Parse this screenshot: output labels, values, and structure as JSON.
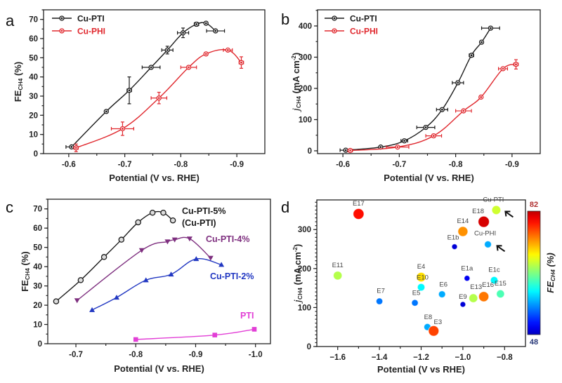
{
  "chart_data": [
    {
      "panel": "a",
      "type": "line",
      "panel_label": "a",
      "xlabel": "Potential (V vs. RHE)",
      "ylabel": "FE",
      "ylabel_sub": "CH4",
      "ylabel_suffix": " (%)",
      "xlim": [
        -0.555,
        -0.95
      ],
      "ylim": [
        0,
        75
      ],
      "xticks": [
        -0.6,
        -0.7,
        -0.8,
        -0.9
      ],
      "xtick_labels": [
        "-0.6",
        "-0.7",
        "-0.8",
        "-0.9"
      ],
      "yticks": [
        0,
        10,
        20,
        30,
        40,
        50,
        60,
        70
      ],
      "ytick_labels": [
        "0",
        "10",
        "20",
        "30",
        "40",
        "50",
        "60",
        "70"
      ],
      "legend": "top-left",
      "series": [
        {
          "name": "Cu-PTI",
          "color": "#1a1a1a",
          "marker": "circle",
          "x": [
            -0.605,
            -0.667,
            -0.708,
            -0.747,
            -0.776,
            -0.804,
            -0.828,
            -0.845,
            -0.862
          ],
          "y": [
            3.5,
            22,
            33,
            45,
            54,
            63,
            67.5,
            68,
            64
          ],
          "xerr": [
            0.01,
            0,
            0.004,
            0.016,
            0.01,
            0.01,
            0.004,
            0,
            0.016
          ],
          "yerr": [
            0,
            0,
            7,
            0,
            2,
            2.5,
            1,
            0,
            0
          ]
        },
        {
          "name": "Cu-PHI",
          "color": "#e0282e",
          "marker": "circle",
          "x": [
            -0.613,
            -0.696,
            -0.761,
            -0.814,
            -0.845,
            -0.884,
            -0.908
          ],
          "y": [
            3,
            13,
            29,
            45,
            52,
            54,
            47.5
          ],
          "xerr": [
            0.004,
            0.02,
            0.014,
            0.014,
            0,
            0.008,
            0.004
          ],
          "yerr": [
            2,
            3.5,
            3,
            0.5,
            0,
            0.5,
            3
          ]
        }
      ]
    },
    {
      "panel": "b",
      "type": "line",
      "panel_label": "b",
      "xlabel": "Potential (V vs. RHE)",
      "ylabel": "j",
      "ylabel_sub": "CH4",
      "ylabel_suffix": " (mA cm",
      "ylabel_sup": "-2",
      "ylabel_close": ")",
      "xlim": [
        -0.555,
        -0.95
      ],
      "ylim": [
        -10,
        450
      ],
      "xticks": [
        -0.6,
        -0.7,
        -0.8,
        -0.9
      ],
      "xtick_labels": [
        "-0.6",
        "-0.7",
        "-0.8",
        "-0.9"
      ],
      "yticks": [
        0,
        100,
        200,
        300,
        400
      ],
      "ytick_labels": [
        "0",
        "100",
        "200",
        "300",
        "400"
      ],
      "legend": "top-left",
      "series": [
        {
          "name": "Cu-PTI",
          "color": "#1a1a1a",
          "marker": "circle",
          "x": [
            -0.605,
            -0.667,
            -0.709,
            -0.747,
            -0.776,
            -0.804,
            -0.828,
            -0.846,
            -0.862
          ],
          "y": [
            2,
            12,
            32,
            75,
            132,
            218,
            306,
            348,
            393
          ],
          "xerr": [
            0.01,
            0,
            0.006,
            0.016,
            0.01,
            0.01,
            0.004,
            0,
            0.016
          ],
          "yerr": [
            0,
            0,
            5,
            0,
            4,
            6,
            5,
            0,
            0
          ]
        },
        {
          "name": "Cu-PHI",
          "color": "#e0282e",
          "marker": "circle",
          "x": [
            -0.613,
            -0.697,
            -0.761,
            -0.814,
            -0.845,
            -0.884,
            -0.907
          ],
          "y": [
            1,
            12,
            48,
            128,
            172,
            263,
            277
          ],
          "xerr": [
            0.004,
            0.02,
            0.014,
            0.014,
            0,
            0.008,
            0.004
          ],
          "yerr": [
            0,
            0,
            5,
            3,
            0,
            4,
            15
          ]
        }
      ]
    },
    {
      "panel": "c",
      "type": "line",
      "panel_label": "c",
      "xlabel": "Potential (V vs. RHE)",
      "ylabel": "FE",
      "ylabel_sub": "CH4",
      "ylabel_suffix": " (%)",
      "xlim": [
        -0.653,
        -1.025
      ],
      "ylim": [
        0,
        75
      ],
      "xticks": [
        -0.7,
        -0.8,
        -0.9,
        -1.0
      ],
      "xtick_labels": [
        "-0.7",
        "-0.8",
        "-0.9",
        "-1.0"
      ],
      "yticks": [
        0,
        10,
        20,
        30,
        40,
        50,
        60,
        70
      ],
      "ytick_labels": [
        "0",
        "10",
        "20",
        "30",
        "40",
        "50",
        "60",
        "70"
      ],
      "legend": "inline labels",
      "series": [
        {
          "name": "Cu-PTI-5%",
          "name_line2": "(Cu-PTI)",
          "color": "#1a1a1a",
          "marker": "circle-open",
          "x": [
            -0.667,
            -0.708,
            -0.747,
            -0.776,
            -0.804,
            -0.828,
            -0.846,
            -0.862
          ],
          "y": [
            22,
            33,
            45,
            54,
            63,
            68,
            68,
            64
          ]
        },
        {
          "name": "Cu-PTI-4%",
          "color": "#7e2f7f",
          "marker": "triangle-down",
          "x": [
            -0.702,
            -0.81,
            -0.853,
            -0.865,
            -0.89,
            -0.925
          ],
          "y": [
            22.5,
            48.5,
            53,
            54,
            54.5,
            44.5
          ]
        },
        {
          "name": "Cu-PTI-2%",
          "color": "#2238c2",
          "marker": "triangle-up",
          "x": [
            -0.727,
            -0.768,
            -0.817,
            -0.859,
            -0.901,
            -0.943
          ],
          "y": [
            17.5,
            24,
            33,
            36,
            44,
            41
          ]
        },
        {
          "name": "PTI",
          "color": "#e23fd6",
          "marker": "square",
          "x": [
            -0.8,
            -0.932,
            -0.998
          ],
          "y": [
            2.2,
            4.5,
            7.5
          ]
        }
      ]
    },
    {
      "panel": "d",
      "type": "scatter",
      "panel_label": "d",
      "xlabel": "Potential (V vs RHE)",
      "ylabel": "j",
      "ylabel_sub": "CH4",
      "ylabel_suffix": " (mA cm",
      "ylabel_sup": "-2",
      "ylabel_close": ")",
      "xlim": [
        -1.7,
        -0.7
      ],
      "ylim": [
        0,
        376
      ],
      "xticks": [
        -1.6,
        -1.4,
        -1.2,
        -1.0,
        -0.8
      ],
      "xtick_labels": [
        "−1.6",
        "−1.4",
        "−1.2",
        "−1.0",
        "−0.8"
      ],
      "yticks": [
        0,
        100,
        200,
        300
      ],
      "ytick_labels": [
        "0",
        "100",
        "200",
        "300"
      ],
      "colorbar": {
        "title": "FE",
        "title_sub": "CH4",
        "title_suffix": " (%)",
        "min": 48,
        "max": 82,
        "min_label": "48",
        "max_label": "82",
        "colormap": "jet"
      },
      "points": [
        {
          "label": "E17",
          "x": -1.5,
          "y": 340,
          "fe": 79
        },
        {
          "label": "E14",
          "x": -1.0,
          "y": 295,
          "fe": 74
        },
        {
          "label": "E18",
          "x": -0.9,
          "y": 320,
          "fe": 81
        },
        {
          "label": "Cu-PTI",
          "x": -0.84,
          "y": 350,
          "fe": 68,
          "arrow": true
        },
        {
          "label": "Cu-PHI",
          "x": -0.88,
          "y": 262,
          "fe": 57,
          "arrow": true
        },
        {
          "label": "E1b",
          "x": -1.04,
          "y": 256,
          "fe": 49
        },
        {
          "label": "E11",
          "x": -1.6,
          "y": 182,
          "fe": 67
        },
        {
          "label": "E4",
          "x": -1.2,
          "y": 178,
          "fe": 71
        },
        {
          "label": "E10",
          "x": -1.2,
          "y": 152,
          "fe": 60
        },
        {
          "label": "E1a",
          "x": -0.98,
          "y": 175,
          "fe": 50
        },
        {
          "label": "E1c",
          "x": -0.85,
          "y": 170,
          "fe": 60
        },
        {
          "label": "E7",
          "x": -1.4,
          "y": 116,
          "fe": 55
        },
        {
          "label": "E5",
          "x": -1.23,
          "y": 112,
          "fe": 55
        },
        {
          "label": "E6",
          "x": -1.1,
          "y": 134,
          "fe": 57
        },
        {
          "label": "E9",
          "x": -1.0,
          "y": 108,
          "fe": 49
        },
        {
          "label": "E13",
          "x": -0.95,
          "y": 124,
          "fe": 67
        },
        {
          "label": "E16",
          "x": -0.9,
          "y": 128,
          "fe": 75
        },
        {
          "label": "E15",
          "x": -0.82,
          "y": 135,
          "fe": 63
        },
        {
          "label": "E8",
          "x": -1.17,
          "y": 50,
          "fe": 57
        },
        {
          "label": "E3",
          "x": -1.14,
          "y": 40,
          "fe": 77
        }
      ]
    }
  ]
}
